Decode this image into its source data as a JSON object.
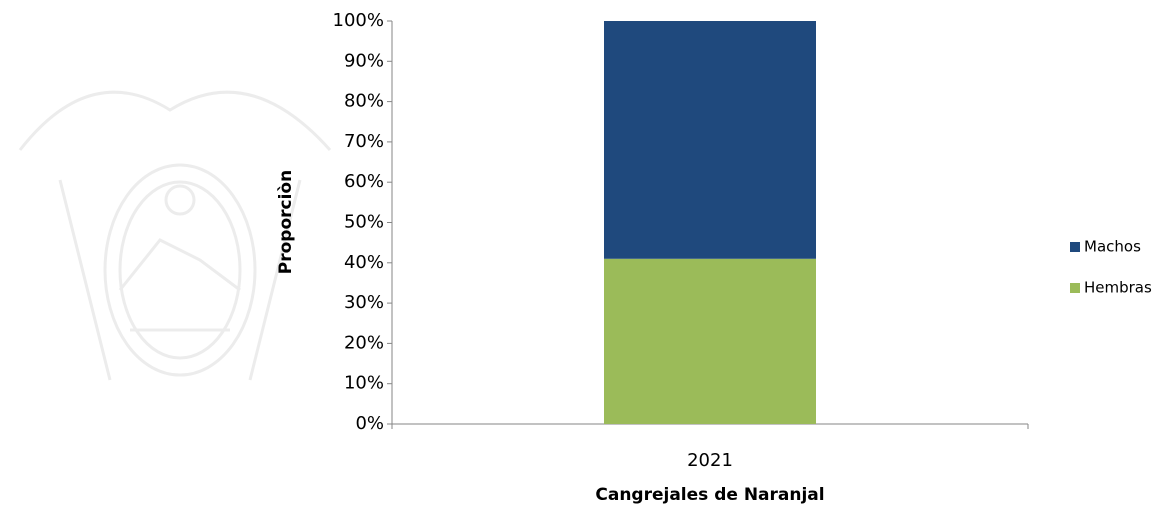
{
  "chart_data": {
    "type": "stacked_bar",
    "categories": [
      "2021"
    ],
    "series": [
      {
        "name": "Machos",
        "color": "#1f497d",
        "values": [
          59
        ]
      },
      {
        "name": "Hembras",
        "color": "#9bbb59",
        "values": [
          41
        ]
      }
    ],
    "ylim": [
      0,
      100
    ],
    "yticks": [
      {
        "value": 0,
        "label": "0%"
      },
      {
        "value": 10,
        "label": "10%"
      },
      {
        "value": 20,
        "label": "20%"
      },
      {
        "value": 30,
        "label": "30%"
      },
      {
        "value": 40,
        "label": "40%"
      },
      {
        "value": 50,
        "label": "50%"
      },
      {
        "value": 60,
        "label": "60%"
      },
      {
        "value": 70,
        "label": "70%"
      },
      {
        "value": 80,
        "label": "80%"
      },
      {
        "value": 90,
        "label": "90%"
      },
      {
        "value": 100,
        "label": "100%"
      }
    ],
    "y_label": "Proporciòn",
    "x_label": "Cangrejales de Naranjal",
    "legend": "right"
  }
}
